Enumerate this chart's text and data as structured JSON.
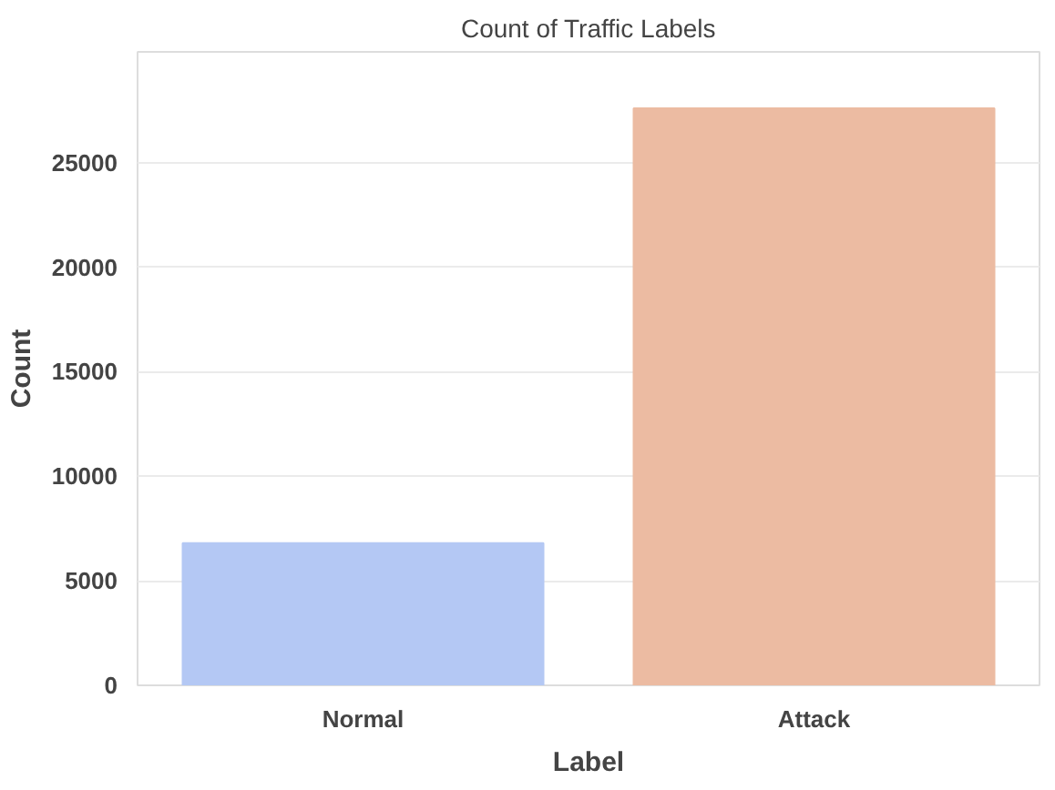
{
  "chart_data": {
    "type": "bar",
    "title": "Count of Traffic Labels",
    "xlabel": "Label",
    "ylabel": "Count",
    "categories": [
      "Normal",
      "Attack"
    ],
    "values": [
      6800,
      27600
    ],
    "colors": [
      "#b4c8f4",
      "#ecbba2"
    ],
    "ylim": [
      0,
      30300
    ],
    "yticks": [
      0,
      5000,
      10000,
      15000,
      20000,
      25000
    ],
    "grid": "y"
  }
}
